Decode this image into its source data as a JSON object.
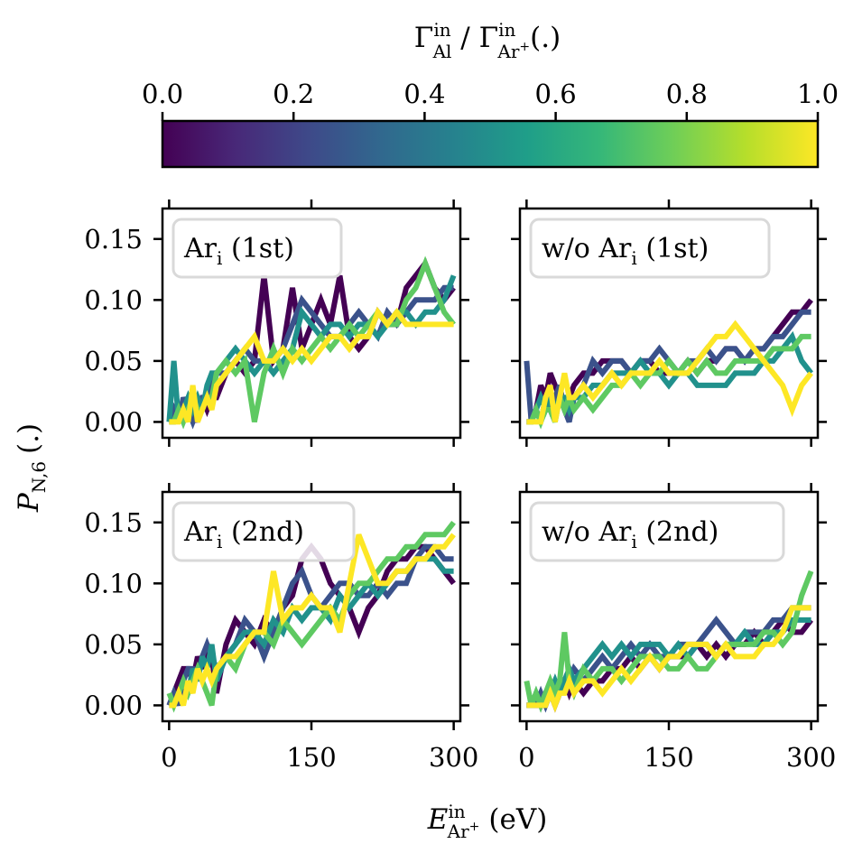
{
  "colorbar": {
    "label": "Γ_Al^in / Γ_Ar+^in (.)",
    "label_parts": {
      "gamma": "Γ",
      "sub1": "Al",
      "sup1": "in",
      "sep": " / ",
      "sub2": "Ar",
      "sub2_sup": "+",
      "sup2": "in",
      "unit": "(.)"
    },
    "ticks": [
      "0.0",
      "0.2",
      "0.4",
      "0.6",
      "0.8",
      "1.0"
    ],
    "range": [
      0,
      1
    ],
    "colormap": "viridis",
    "stops": [
      "#440154",
      "#482878",
      "#3e4989",
      "#31688e",
      "#26828e",
      "#1f9e89",
      "#35b779",
      "#6ece58",
      "#b5de2b",
      "#fde725"
    ]
  },
  "y_axis": {
    "label": "P_N,6 (.)",
    "label_parts": {
      "P": "P",
      "sub": "N,6",
      "unit": "(.)"
    },
    "ticks": [
      "0.00",
      "0.05",
      "0.10",
      "0.15"
    ],
    "tick_values": [
      0,
      0.05,
      0.1,
      0.15
    ],
    "ylim": [
      -0.013,
      0.175
    ]
  },
  "x_axis": {
    "label": "E_Ar+^in (eV)",
    "label_parts": {
      "E": "E",
      "sup": "in",
      "sub": "Ar",
      "sub_sup": "+",
      "unit": "(eV)"
    },
    "ticks": [
      "0",
      "150",
      "300"
    ],
    "tick_values": [
      0,
      150,
      300
    ],
    "xlim": [
      -7,
      307
    ]
  },
  "chart_data": [
    {
      "type": "line",
      "panel": "top-left",
      "legend": {
        "base": "Ar",
        "sub": "i",
        "suffix": " (1st)",
        "placement": "top-left"
      },
      "x": [
        0,
        5,
        10,
        15,
        20,
        25,
        30,
        35,
        40,
        45,
        50,
        60,
        70,
        80,
        90,
        100,
        110,
        120,
        130,
        140,
        150,
        160,
        170,
        180,
        190,
        200,
        210,
        220,
        230,
        240,
        250,
        260,
        270,
        280,
        290,
        300
      ],
      "series": [
        {
          "color": "#440154",
          "values": [
            0.0,
            0.0,
            0.01,
            0.0,
            0.02,
            0.01,
            0.0,
            0.02,
            0.01,
            0.02,
            0.02,
            0.04,
            0.05,
            0.04,
            0.05,
            0.12,
            0.05,
            0.06,
            0.11,
            0.06,
            0.08,
            0.1,
            0.08,
            0.12,
            0.07,
            0.06,
            0.07,
            0.09,
            0.08,
            0.08,
            0.11,
            0.12,
            0.13,
            0.11,
            0.1,
            0.11
          ]
        },
        {
          "color": "#3b528b",
          "values": [
            0.0,
            0.01,
            0.0,
            0.02,
            0.01,
            0.0,
            0.01,
            0.02,
            0.02,
            0.03,
            0.04,
            0.04,
            0.05,
            0.06,
            0.05,
            0.05,
            0.05,
            0.06,
            0.08,
            0.1,
            0.09,
            0.08,
            0.07,
            0.07,
            0.08,
            0.09,
            0.08,
            0.07,
            0.09,
            0.08,
            0.09,
            0.1,
            0.1,
            0.1,
            0.11,
            0.11
          ]
        },
        {
          "color": "#21918c",
          "values": [
            0.0,
            0.05,
            0.0,
            0.01,
            0.02,
            0.01,
            0.02,
            0.01,
            0.03,
            0.04,
            0.04,
            0.05,
            0.06,
            0.05,
            0.04,
            0.05,
            0.04,
            0.05,
            0.06,
            0.09,
            0.08,
            0.07,
            0.08,
            0.08,
            0.07,
            0.08,
            0.08,
            0.07,
            0.08,
            0.09,
            0.09,
            0.08,
            0.09,
            0.09,
            0.1,
            0.12
          ]
        },
        {
          "color": "#5ec962",
          "values": [
            0.0,
            0.0,
            0.01,
            0.0,
            0.01,
            0.02,
            0.01,
            0.01,
            0.02,
            0.02,
            0.04,
            0.05,
            0.04,
            0.05,
            0.0,
            0.04,
            0.06,
            0.04,
            0.06,
            0.05,
            0.06,
            0.07,
            0.06,
            0.07,
            0.08,
            0.07,
            0.08,
            0.09,
            0.08,
            0.08,
            0.1,
            0.11,
            0.13,
            0.11,
            0.09,
            0.08
          ]
        },
        {
          "color": "#fde725",
          "values": [
            0.0,
            0.0,
            0.0,
            0.01,
            0.0,
            0.03,
            0.0,
            0.01,
            0.02,
            0.01,
            0.03,
            0.04,
            0.05,
            0.06,
            0.07,
            0.05,
            0.05,
            0.06,
            0.05,
            0.06,
            0.05,
            0.06,
            0.07,
            0.07,
            0.06,
            0.07,
            0.07,
            0.09,
            0.08,
            0.09,
            0.08,
            0.08,
            0.08,
            0.08,
            0.08,
            0.08
          ]
        }
      ]
    },
    {
      "type": "line",
      "panel": "top-right",
      "legend": {
        "base": "w/o Ar",
        "sub": "i",
        "suffix": " (1st)",
        "placement": "top-left"
      },
      "x": [
        0,
        5,
        10,
        15,
        20,
        25,
        30,
        35,
        40,
        45,
        50,
        60,
        70,
        80,
        90,
        100,
        110,
        120,
        130,
        140,
        150,
        160,
        170,
        180,
        190,
        200,
        210,
        220,
        230,
        240,
        250,
        260,
        270,
        280,
        290,
        300
      ],
      "series": [
        {
          "color": "#440154",
          "values": [
            0.0,
            0.0,
            0.01,
            0.03,
            0.02,
            0.04,
            0.03,
            0.02,
            0.01,
            0.02,
            0.03,
            0.04,
            0.04,
            0.05,
            0.05,
            0.05,
            0.04,
            0.05,
            0.05,
            0.04,
            0.04,
            0.04,
            0.05,
            0.04,
            0.05,
            0.05,
            0.06,
            0.06,
            0.05,
            0.06,
            0.06,
            0.07,
            0.08,
            0.09,
            0.09,
            0.1
          ]
        },
        {
          "color": "#3b528b",
          "values": [
            0.05,
            0.0,
            0.01,
            0.0,
            0.02,
            0.01,
            0.02,
            0.03,
            0.01,
            0.0,
            0.02,
            0.03,
            0.05,
            0.04,
            0.05,
            0.05,
            0.04,
            0.05,
            0.05,
            0.06,
            0.05,
            0.04,
            0.05,
            0.05,
            0.06,
            0.05,
            0.06,
            0.06,
            0.05,
            0.06,
            0.06,
            0.07,
            0.07,
            0.08,
            0.09,
            0.09
          ]
        },
        {
          "color": "#21918c",
          "values": [
            0.0,
            0.0,
            0.01,
            0.02,
            0.01,
            0.02,
            0.01,
            0.02,
            0.02,
            0.01,
            0.02,
            0.02,
            0.03,
            0.03,
            0.04,
            0.04,
            0.04,
            0.05,
            0.04,
            0.04,
            0.03,
            0.04,
            0.04,
            0.03,
            0.03,
            0.03,
            0.03,
            0.04,
            0.04,
            0.04,
            0.05,
            0.05,
            0.06,
            0.07,
            0.05,
            0.04
          ]
        },
        {
          "color": "#5ec962",
          "values": [
            0.0,
            0.0,
            0.01,
            0.0,
            0.01,
            0.01,
            0.0,
            0.02,
            0.01,
            0.02,
            0.01,
            0.02,
            0.01,
            0.02,
            0.03,
            0.03,
            0.04,
            0.03,
            0.04,
            0.04,
            0.05,
            0.04,
            0.05,
            0.04,
            0.05,
            0.04,
            0.04,
            0.05,
            0.05,
            0.05,
            0.05,
            0.06,
            0.06,
            0.06,
            0.07,
            0.07
          ]
        },
        {
          "color": "#fde725",
          "values": [
            0.0,
            0.0,
            0.0,
            0.0,
            0.02,
            0.03,
            0.0,
            0.02,
            0.04,
            0.02,
            0.02,
            0.03,
            0.02,
            0.03,
            0.04,
            0.03,
            0.04,
            0.04,
            0.04,
            0.05,
            0.04,
            0.04,
            0.04,
            0.05,
            0.06,
            0.07,
            0.07,
            0.08,
            0.07,
            0.06,
            0.05,
            0.04,
            0.03,
            0.01,
            0.03,
            0.04
          ]
        }
      ]
    },
    {
      "type": "line",
      "panel": "bottom-left",
      "legend": {
        "base": "Ar",
        "sub": "i",
        "suffix": " (2nd)",
        "placement": "top-left"
      },
      "x": [
        0,
        5,
        10,
        15,
        20,
        25,
        30,
        35,
        40,
        45,
        50,
        60,
        70,
        80,
        90,
        100,
        110,
        120,
        130,
        140,
        150,
        160,
        170,
        180,
        190,
        200,
        210,
        220,
        230,
        240,
        250,
        260,
        270,
        280,
        290,
        300
      ],
      "series": [
        {
          "color": "#440154",
          "values": [
            0.0,
            0.01,
            0.02,
            0.03,
            0.03,
            0.02,
            0.04,
            0.03,
            0.05,
            0.04,
            0.01,
            0.05,
            0.07,
            0.06,
            0.05,
            0.07,
            0.06,
            0.08,
            0.09,
            0.12,
            0.13,
            0.12,
            0.1,
            0.09,
            0.08,
            0.06,
            0.08,
            0.09,
            0.11,
            0.12,
            0.12,
            0.13,
            0.13,
            0.12,
            0.11,
            0.1
          ]
        },
        {
          "color": "#3b528b",
          "values": [
            0.0,
            0.01,
            0.0,
            0.02,
            0.03,
            0.03,
            0.02,
            0.04,
            0.05,
            0.04,
            0.03,
            0.04,
            0.05,
            0.07,
            0.06,
            0.04,
            0.06,
            0.08,
            0.1,
            0.11,
            0.09,
            0.08,
            0.09,
            0.1,
            0.1,
            0.09,
            0.09,
            0.1,
            0.09,
            0.1,
            0.1,
            0.12,
            0.13,
            0.13,
            0.12,
            0.12
          ]
        },
        {
          "color": "#21918c",
          "values": [
            0.0,
            0.0,
            0.01,
            0.02,
            0.01,
            0.03,
            0.02,
            0.04,
            0.03,
            0.05,
            0.02,
            0.04,
            0.05,
            0.06,
            0.06,
            0.05,
            0.07,
            0.06,
            0.08,
            0.07,
            0.08,
            0.08,
            0.07,
            0.09,
            0.08,
            0.09,
            0.1,
            0.09,
            0.1,
            0.11,
            0.11,
            0.12,
            0.12,
            0.12,
            0.11,
            0.11
          ]
        },
        {
          "color": "#5ec962",
          "values": [
            0.01,
            0.0,
            0.01,
            0.02,
            0.01,
            0.02,
            0.03,
            0.02,
            0.01,
            0.0,
            0.03,
            0.04,
            0.03,
            0.05,
            0.06,
            0.06,
            0.05,
            0.07,
            0.06,
            0.05,
            0.06,
            0.07,
            0.08,
            0.07,
            0.09,
            0.1,
            0.1,
            0.11,
            0.12,
            0.12,
            0.13,
            0.13,
            0.14,
            0.14,
            0.14,
            0.15
          ]
        },
        {
          "color": "#fde725",
          "values": [
            0.0,
            0.0,
            0.01,
            0.0,
            0.02,
            0.01,
            0.03,
            0.02,
            0.03,
            0.02,
            0.03,
            0.04,
            0.04,
            0.05,
            0.06,
            0.06,
            0.11,
            0.07,
            0.08,
            0.08,
            0.09,
            0.08,
            0.08,
            0.06,
            0.1,
            0.14,
            0.12,
            0.1,
            0.1,
            0.11,
            0.11,
            0.12,
            0.12,
            0.13,
            0.13,
            0.14
          ]
        }
      ]
    },
    {
      "type": "line",
      "panel": "bottom-right",
      "legend": {
        "base": "w/o Ar",
        "sub": "i",
        "suffix": " (2nd)",
        "placement": "top-left"
      },
      "x": [
        0,
        5,
        10,
        15,
        20,
        25,
        30,
        35,
        40,
        45,
        50,
        60,
        70,
        80,
        90,
        100,
        110,
        120,
        130,
        140,
        150,
        160,
        170,
        180,
        190,
        200,
        210,
        220,
        230,
        240,
        250,
        260,
        270,
        280,
        290,
        300
      ],
      "series": [
        {
          "color": "#440154",
          "values": [
            0.0,
            0.0,
            0.0,
            0.0,
            0.0,
            0.01,
            0.0,
            0.01,
            0.02,
            0.01,
            0.02,
            0.01,
            0.02,
            0.02,
            0.03,
            0.03,
            0.04,
            0.03,
            0.04,
            0.03,
            0.04,
            0.04,
            0.04,
            0.05,
            0.04,
            0.05,
            0.04,
            0.05,
            0.05,
            0.06,
            0.05,
            0.06,
            0.07,
            0.06,
            0.06,
            0.07
          ]
        },
        {
          "color": "#3b528b",
          "values": [
            0.0,
            0.0,
            0.0,
            0.01,
            0.0,
            0.01,
            0.02,
            0.01,
            0.02,
            0.02,
            0.03,
            0.02,
            0.03,
            0.04,
            0.03,
            0.04,
            0.05,
            0.04,
            0.05,
            0.04,
            0.04,
            0.05,
            0.05,
            0.05,
            0.06,
            0.07,
            0.06,
            0.05,
            0.06,
            0.06,
            0.06,
            0.07,
            0.07,
            0.08,
            0.08,
            0.08
          ]
        },
        {
          "color": "#21918c",
          "values": [
            0.0,
            0.0,
            0.01,
            0.0,
            0.01,
            0.01,
            0.02,
            0.01,
            0.02,
            0.03,
            0.02,
            0.03,
            0.04,
            0.05,
            0.04,
            0.05,
            0.04,
            0.05,
            0.05,
            0.05,
            0.04,
            0.05,
            0.04,
            0.05,
            0.05,
            0.04,
            0.05,
            0.05,
            0.06,
            0.05,
            0.05,
            0.06,
            0.06,
            0.07,
            0.07,
            0.07
          ]
        },
        {
          "color": "#5ec962",
          "values": [
            0.02,
            0.0,
            0.01,
            0.0,
            0.01,
            0.02,
            0.01,
            0.02,
            0.06,
            0.02,
            0.01,
            0.03,
            0.02,
            0.03,
            0.03,
            0.02,
            0.03,
            0.04,
            0.04,
            0.04,
            0.03,
            0.03,
            0.04,
            0.03,
            0.03,
            0.04,
            0.05,
            0.05,
            0.05,
            0.05,
            0.06,
            0.06,
            0.05,
            0.06,
            0.09,
            0.11
          ]
        },
        {
          "color": "#fde725",
          "values": [
            0.0,
            0.0,
            0.0,
            0.0,
            0.0,
            0.01,
            0.0,
            0.01,
            0.01,
            0.02,
            0.01,
            0.02,
            0.02,
            0.01,
            0.02,
            0.03,
            0.02,
            0.03,
            0.04,
            0.03,
            0.04,
            0.04,
            0.05,
            0.05,
            0.05,
            0.04,
            0.05,
            0.04,
            0.04,
            0.04,
            0.05,
            0.05,
            0.06,
            0.08,
            0.08,
            0.08
          ]
        }
      ]
    }
  ]
}
